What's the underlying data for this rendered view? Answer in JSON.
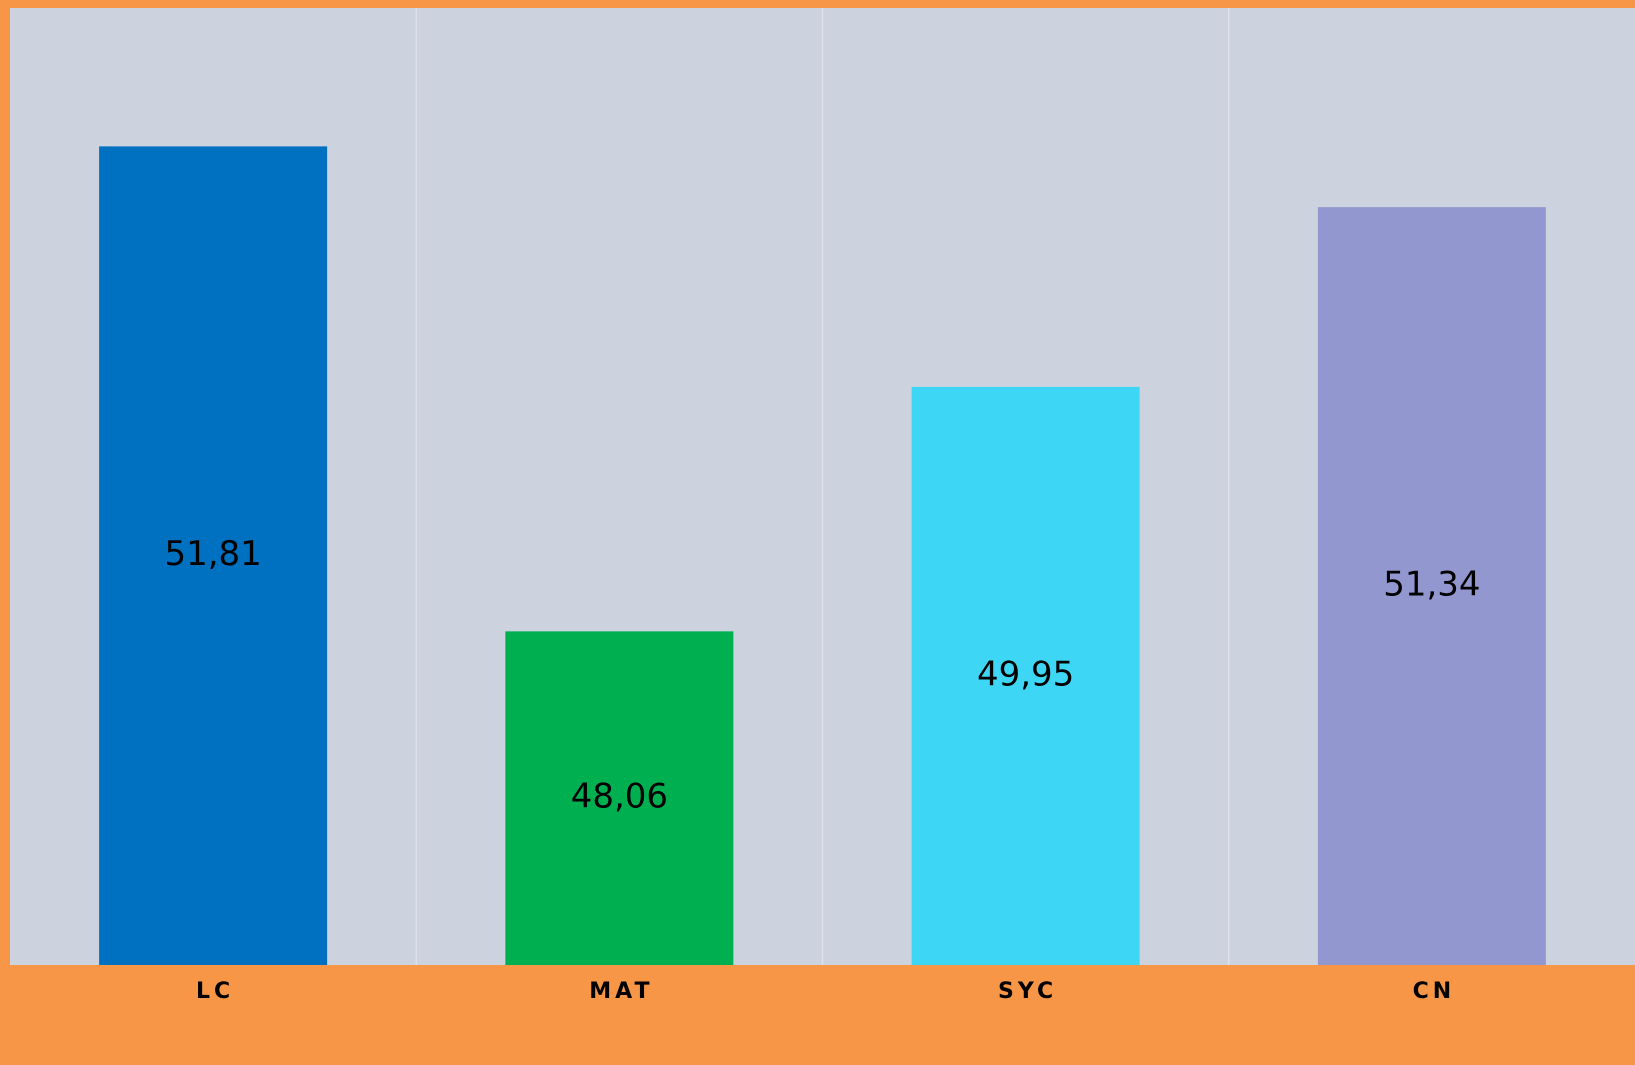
{
  "chart_data": {
    "type": "bar",
    "categories": [
      "LC",
      "MAT",
      "SYC",
      "CN"
    ],
    "values": [
      51.81,
      48.06,
      49.95,
      51.34
    ],
    "value_labels": [
      "51,81",
      "48,06",
      "49,95",
      "51,34"
    ],
    "colors": [
      "#0070c0",
      "#00b050",
      "#3dd6f5",
      "#9297cf"
    ],
    "title": "",
    "xlabel": "",
    "ylabel": "",
    "ylim": [
      45.48,
      52.88
    ],
    "grid": "vertical-separators",
    "legend": "none",
    "data_labels": "center"
  },
  "style": {
    "background_color": "#f79646",
    "plot_background_color": "#ccd3de",
    "separator_color": "#dde2ea"
  }
}
